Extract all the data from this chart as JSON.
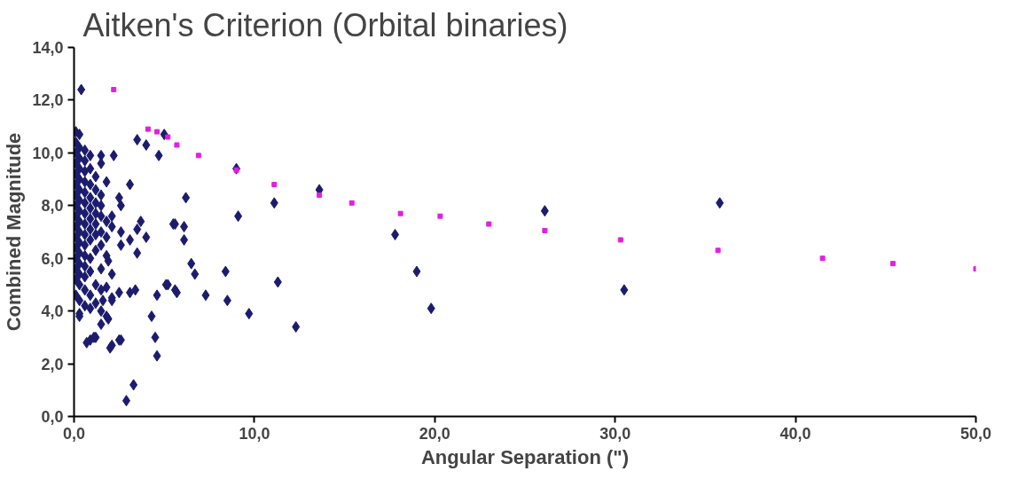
{
  "chart_data": {
    "type": "scatter",
    "title": "Aitken's Criterion (Orbital binaries)",
    "xlabel": "Angular Separation (\")",
    "ylabel": "Combined Magnitude",
    "xlim": [
      0,
      50
    ],
    "ylim": [
      0,
      14
    ],
    "xticks": [
      {
        "value": 0,
        "label": "0,0"
      },
      {
        "value": 10,
        "label": "10,0"
      },
      {
        "value": 20,
        "label": "20,0"
      },
      {
        "value": 30,
        "label": "30,0"
      },
      {
        "value": 40,
        "label": "40,0"
      },
      {
        "value": 50,
        "label": "50,0"
      }
    ],
    "yticks": [
      {
        "value": 0,
        "label": "0,0"
      },
      {
        "value": 2,
        "label": "2,0"
      },
      {
        "value": 4,
        "label": "4,0"
      },
      {
        "value": 6,
        "label": "6,0"
      },
      {
        "value": 8,
        "label": "8,0"
      },
      {
        "value": 10,
        "label": "10,0"
      },
      {
        "value": 12,
        "label": "12,0"
      },
      {
        "value": 14,
        "label": "14,0"
      }
    ],
    "grid": false,
    "series": [
      {
        "marker": "diamond",
        "color": "#1c1c6e",
        "x": [
          0.1,
          0.1,
          0.1,
          0.1,
          0.1,
          0.1,
          0.1,
          0.1,
          0.1,
          0.1,
          0.1,
          0.1,
          0.1,
          0.1,
          0.1,
          0.1,
          0.3,
          0.3,
          0.3,
          0.3,
          0.3,
          0.3,
          0.3,
          0.3,
          0.3,
          0.3,
          0.3,
          0.3,
          0.3,
          0.3,
          0.3,
          0.3,
          0.3,
          0.6,
          0.6,
          0.6,
          0.6,
          0.6,
          0.6,
          0.6,
          0.6,
          0.6,
          0.6,
          0.6,
          0.6,
          0.6,
          0.6,
          0.6,
          0.9,
          0.9,
          0.9,
          0.9,
          0.9,
          0.9,
          0.9,
          0.9,
          0.9,
          0.9,
          0.9,
          0.9,
          0.9,
          1.2,
          1.2,
          1.2,
          1.2,
          1.2,
          1.2,
          1.2,
          1.2,
          1.2,
          1.2,
          1.5,
          1.5,
          1.5,
          1.5,
          1.5,
          1.5,
          1.5,
          1.5,
          1.5,
          1.5,
          1.8,
          1.8,
          1.8,
          1.8,
          1.8,
          1.8,
          2.1,
          2.1,
          2.1,
          2.1,
          2.1,
          2.6,
          2.6,
          2.6,
          2.6,
          0.4,
          0.7,
          1.1,
          2.0,
          2.5,
          0.3,
          1.6,
          1.9,
          3.5,
          4.0,
          4.7,
          5.0,
          1.5,
          2.2,
          3.1,
          2.5,
          3.7,
          5.5,
          3.5,
          4.0,
          3.1,
          3.5,
          1.9,
          5.1,
          5.6,
          3.4,
          3.1,
          2.5,
          2.1,
          4.6,
          4.3,
          4.5,
          4.6,
          3.3,
          2.9,
          6.2,
          5.6,
          6.1,
          6.1,
          6.5,
          6.7,
          5.2,
          5.7,
          7.3,
          8.4,
          8.5,
          9.7,
          9.1,
          9.0,
          11.1,
          11.3,
          12.3,
          13.6,
          17.8,
          19.0,
          19.8,
          26.1,
          30.5,
          35.8
        ],
        "values": [
          4.6,
          5.2,
          5.6,
          6.0,
          6.4,
          6.8,
          7.2,
          7.6,
          8.0,
          8.4,
          8.8,
          9.2,
          9.6,
          10.0,
          10.4,
          10.8,
          3.9,
          4.4,
          5.0,
          5.4,
          5.8,
          6.2,
          6.6,
          7.0,
          7.4,
          7.8,
          8.2,
          8.6,
          9.0,
          9.4,
          9.8,
          10.2,
          10.7,
          4.2,
          4.8,
          5.3,
          5.7,
          6.1,
          6.5,
          6.9,
          7.3,
          7.7,
          8.1,
          8.5,
          8.9,
          9.3,
          9.7,
          10.1,
          2.9,
          4.1,
          4.6,
          5.5,
          6.0,
          6.7,
          7.1,
          7.5,
          7.9,
          8.3,
          8.8,
          9.4,
          9.9,
          3.0,
          4.3,
          5.0,
          6.3,
          6.9,
          7.3,
          7.7,
          8.1,
          8.6,
          9.1,
          3.5,
          4.0,
          4.8,
          5.6,
          6.5,
          7.0,
          7.6,
          8.0,
          8.4,
          9.6,
          3.8,
          4.9,
          6.1,
          6.8,
          7.4,
          8.9,
          2.7,
          4.4,
          5.4,
          7.2,
          7.6,
          2.9,
          6.5,
          7.0,
          8.0,
          12.4,
          2.8,
          3.0,
          2.6,
          2.9,
          3.8,
          4.4,
          3.7,
          10.5,
          10.3,
          9.9,
          10.7,
          9.9,
          9.9,
          8.8,
          8.3,
          7.4,
          7.3,
          7.1,
          6.8,
          6.7,
          6.2,
          5.9,
          5.0,
          4.8,
          4.8,
          4.7,
          4.7,
          4.5,
          4.6,
          3.8,
          3.0,
          2.3,
          1.2,
          0.6,
          8.3,
          7.3,
          7.2,
          6.7,
          5.8,
          5.4,
          5.0,
          4.7,
          4.6,
          5.5,
          4.4,
          3.9,
          7.6,
          9.4,
          8.1,
          5.1,
          3.4,
          8.6,
          6.9,
          5.5,
          4.1,
          7.8,
          4.8,
          8.1
        ]
      },
      {
        "marker": "square",
        "color": "#e020e0",
        "x": [
          2.2,
          4.1,
          4.6,
          5.2,
          5.7,
          6.9,
          9.0,
          11.1,
          13.6,
          15.4,
          18.1,
          20.3,
          23.0,
          26.1,
          30.3,
          35.7,
          41.5,
          45.4,
          50.0
        ],
        "values": [
          12.4,
          10.9,
          10.8,
          10.6,
          10.3,
          9.9,
          9.35,
          8.8,
          8.4,
          8.1,
          7.7,
          7.6,
          7.3,
          7.05,
          6.7,
          6.3,
          6.0,
          5.8,
          5.6
        ]
      }
    ]
  }
}
